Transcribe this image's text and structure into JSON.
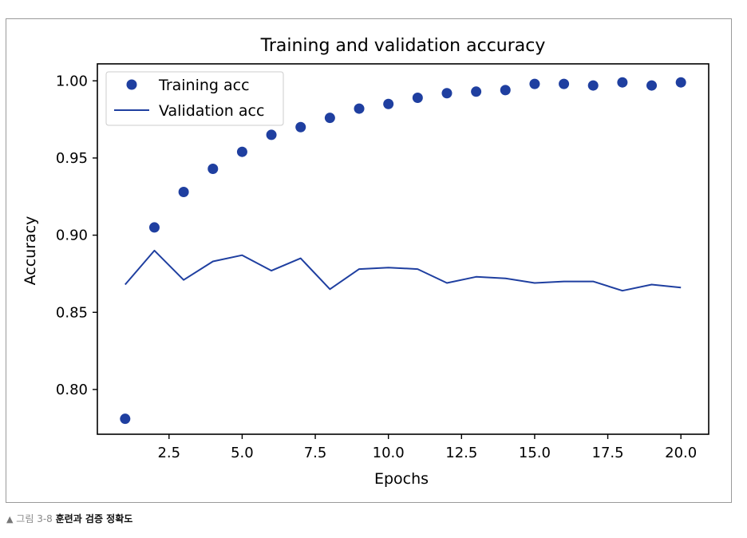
{
  "chart_data": {
    "type": "line",
    "title": "Training and validation accuracy",
    "xlabel": "Epochs",
    "ylabel": "Accuracy",
    "xlim": [
      0.05,
      20.95
    ],
    "ylim": [
      0.771,
      1.011
    ],
    "xticks": [
      2.5,
      5.0,
      7.5,
      10.0,
      12.5,
      15.0,
      17.5,
      20.0
    ],
    "xtick_labels": [
      "2.5",
      "5.0",
      "7.5",
      "10.0",
      "12.5",
      "15.0",
      "17.5",
      "20.0"
    ],
    "yticks": [
      0.8,
      0.85,
      0.9,
      0.95,
      1.0
    ],
    "ytick_labels": [
      "0.80",
      "0.85",
      "0.90",
      "0.95",
      "1.00"
    ],
    "grid": false,
    "legend_position": "top-left",
    "x": [
      1,
      2,
      3,
      4,
      5,
      6,
      7,
      8,
      9,
      10,
      11,
      12,
      13,
      14,
      15,
      16,
      17,
      18,
      19,
      20
    ],
    "series": [
      {
        "name": "Training acc",
        "style": "dots",
        "color": "#1f3fa0",
        "values": [
          0.781,
          0.905,
          0.928,
          0.943,
          0.954,
          0.965,
          0.97,
          0.976,
          0.982,
          0.985,
          0.989,
          0.992,
          0.993,
          0.994,
          0.998,
          0.998,
          0.997,
          0.999,
          0.997,
          0.999
        ]
      },
      {
        "name": "Validation acc",
        "style": "line",
        "color": "#1f3fa0",
        "values": [
          0.868,
          0.89,
          0.871,
          0.883,
          0.887,
          0.877,
          0.885,
          0.865,
          0.878,
          0.879,
          0.878,
          0.869,
          0.873,
          0.872,
          0.869,
          0.87,
          0.87,
          0.864,
          0.868,
          0.866
        ]
      }
    ]
  },
  "caption": {
    "marker": "▲",
    "figure_number": "그림 3-8",
    "text": "훈련과 검증 정확도"
  }
}
